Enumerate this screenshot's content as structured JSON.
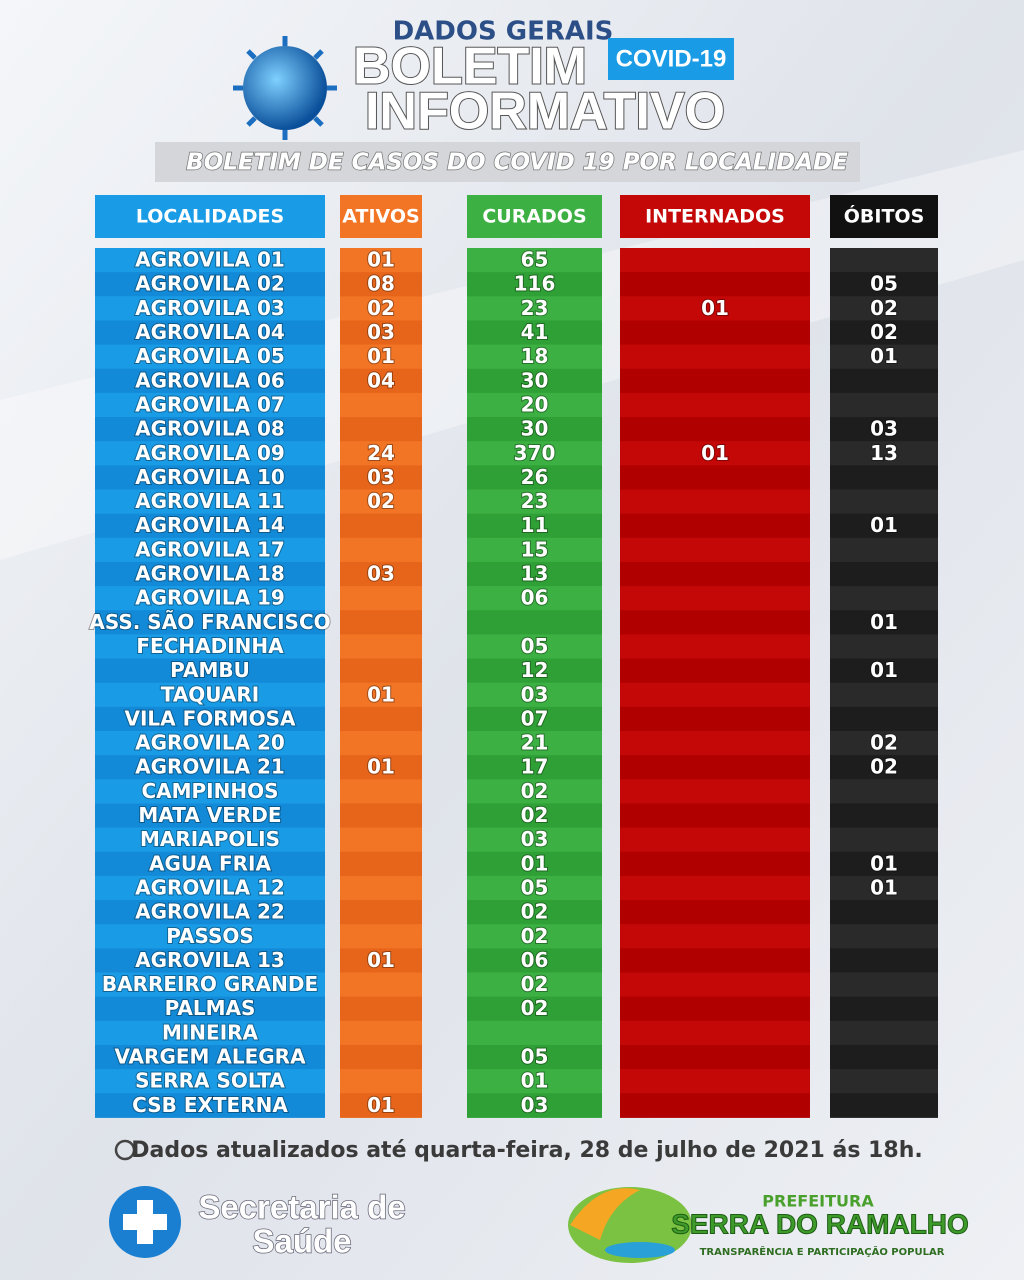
{
  "header": {
    "kicker": "DADOS GERAIS",
    "title_line1": "BOLETIM",
    "title_line2": "INFORMATIVO",
    "badge": "COVID-19",
    "subtitle": "BOLETIM DE CASOS DO COVID 19 POR LOCALIDADE"
  },
  "table": {
    "columns": [
      "LOCALIDADES",
      "ATIVOS",
      "CURADOS",
      "INTERNADOS",
      "ÓBITOS"
    ],
    "rows": [
      [
        "AGROVILA 01",
        "01",
        "65",
        null,
        null
      ],
      [
        "AGROVILA 02",
        "08",
        "116",
        null,
        "05"
      ],
      [
        "AGROVILA 03",
        "02",
        "23",
        "01",
        "02"
      ],
      [
        "AGROVILA 04",
        "03",
        "41",
        null,
        "02"
      ],
      [
        "AGROVILA 05",
        "01",
        "18",
        null,
        "01"
      ],
      [
        "AGROVILA 06",
        "04",
        "30",
        null,
        null
      ],
      [
        "AGROVILA 07",
        null,
        "20",
        null,
        null
      ],
      [
        "AGROVILA 08",
        null,
        "30",
        null,
        "03"
      ],
      [
        "AGROVILA 09",
        "24",
        "370",
        "01",
        "13"
      ],
      [
        "AGROVILA 10",
        "03",
        "26",
        null,
        null
      ],
      [
        "AGROVILA 11",
        "02",
        "23",
        null,
        null
      ],
      [
        "AGROVILA 14",
        null,
        "11",
        null,
        "01"
      ],
      [
        "AGROVILA 17",
        null,
        "15",
        null,
        null
      ],
      [
        "AGROVILA 18",
        "03",
        "13",
        null,
        null
      ],
      [
        "AGROVILA 19",
        null,
        "06",
        null,
        null
      ],
      [
        "ASS. SÃO FRANCISCO",
        null,
        null,
        null,
        "01"
      ],
      [
        "FECHADINHA",
        null,
        "05",
        null,
        null
      ],
      [
        "PAMBU",
        null,
        "12",
        null,
        "01"
      ],
      [
        "TAQUARI",
        "01",
        "03",
        null,
        null
      ],
      [
        "VILA FORMOSA",
        null,
        "07",
        null,
        null
      ],
      [
        "AGROVILA 20",
        null,
        "21",
        null,
        "02"
      ],
      [
        "AGROVILA 21",
        "01",
        "17",
        null,
        "02"
      ],
      [
        "CAMPINHOS",
        null,
        "02",
        null,
        null
      ],
      [
        "MATA VERDE",
        null,
        "02",
        null,
        null
      ],
      [
        "MARIAPOLIS",
        null,
        "03",
        null,
        null
      ],
      [
        "AGUA FRIA",
        null,
        "01",
        null,
        "01"
      ],
      [
        "AGROVILA 12",
        null,
        "05",
        null,
        "01"
      ],
      [
        "AGROVILA 22",
        null,
        "02",
        null,
        null
      ],
      [
        "PASSOS",
        null,
        "02",
        null,
        null
      ],
      [
        "AGROVILA 13",
        "01",
        "06",
        null,
        null
      ],
      [
        "BARREIRO GRANDE",
        null,
        "02",
        null,
        null
      ],
      [
        "PALMAS",
        null,
        "02",
        null,
        null
      ],
      [
        "MINEIRA",
        null,
        null,
        null,
        null
      ],
      [
        "VARGEM ALEGRA",
        null,
        "05",
        null,
        null
      ],
      [
        "SERRA SOLTA",
        null,
        "01",
        null,
        null
      ],
      [
        "CSB EXTERNA",
        "01",
        "03",
        null,
        null
      ]
    ]
  },
  "footer": {
    "note": "Dados atualizados até quarta-feira, 28 de julho de 2021 ás 18h.",
    "secretaria": [
      "Secretaria de",
      "Saúde"
    ],
    "prefeitura_kicker": "PREFEITURA",
    "prefeitura_name": "SERRA DO RAMALHO",
    "prefeitura_slogan": "TRANSPARÊNCIA E PARTICIPAÇÃO POPULAR"
  }
}
